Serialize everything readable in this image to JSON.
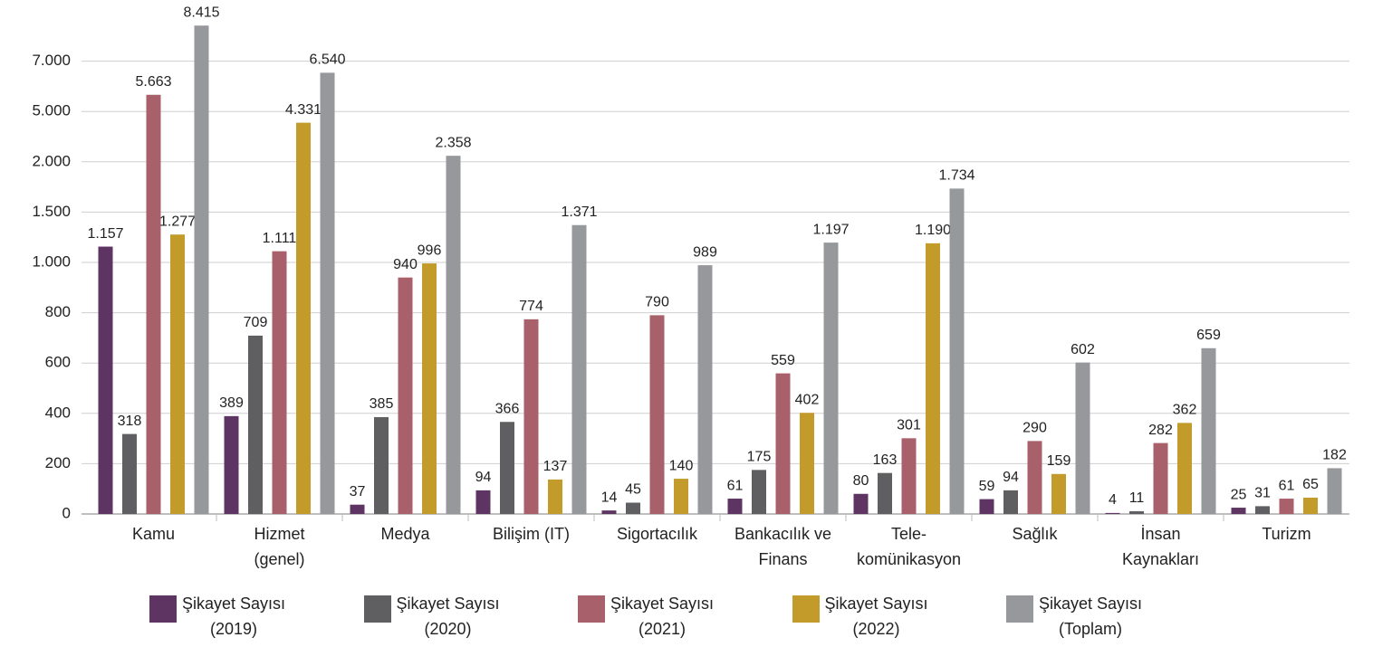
{
  "chart_data": {
    "type": "bar",
    "categories": [
      "Kamu",
      "Hizmet\n(genel)",
      "Medya",
      "Bilişim (IT)",
      "Sigortacılık",
      "Bankacılık ve\nFinans",
      "Tele-\nkomünikasyon",
      "Sağlık",
      "İnsan\nKaynakları",
      "Turizm"
    ],
    "series": [
      {
        "name": "Şikayet Sayısı\n(2019)",
        "color": "#5e3462",
        "values": [
          1157,
          389,
          37,
          94,
          14,
          61,
          80,
          59,
          4,
          25
        ],
        "value_labels": [
          "1.157",
          "389",
          "37",
          "94",
          "14",
          "61",
          "80",
          "59",
          "4",
          "25"
        ]
      },
      {
        "name": "Şikayet Sayısı\n(2020)",
        "color": "#5f5f61",
        "values": [
          318,
          709,
          385,
          366,
          45,
          175,
          163,
          94,
          11,
          31
        ],
        "value_labels": [
          "318",
          "709",
          "385",
          "366",
          "45",
          "175",
          "163",
          "94",
          "11",
          "31"
        ]
      },
      {
        "name": "Şikayet Sayısı\n(2021)",
        "color": "#a8606b",
        "values": [
          5663,
          1111,
          940,
          774,
          790,
          559,
          301,
          290,
          282,
          61
        ],
        "value_labels": [
          "5.663",
          "1.111",
          "940",
          "774",
          "790",
          "559",
          "301",
          "290",
          "282",
          "61"
        ]
      },
      {
        "name": "Şikayet Sayısı\n(2022)",
        "color": "#c39b2b",
        "values": [
          1277,
          4331,
          996,
          137,
          140,
          402,
          1190,
          159,
          362,
          65
        ],
        "value_labels": [
          "1.277",
          "4.331",
          "996",
          "137",
          "140",
          "402",
          "1.190",
          "159",
          "362",
          "65"
        ]
      },
      {
        "name": "Şikayet Sayısı\n(Toplam)",
        "color": "#96989b",
        "values": [
          8415,
          6540,
          2358,
          1371,
          989,
          1197,
          1734,
          602,
          659,
          182
        ],
        "value_labels": [
          "8.415",
          "6.540",
          "2.358",
          "1.371",
          "989",
          "1.197",
          "1.734",
          "602",
          "659",
          "182"
        ]
      }
    ],
    "ylim": [
      0,
      9000
    ],
    "yticks": [
      0,
      200,
      400,
      600,
      800,
      {
        "value": 1000,
        "label": "1.000"
      },
      {
        "value": 1500,
        "label": "1.500"
      },
      {
        "value": 2000,
        "label": "2.000"
      },
      {
        "value": 5000,
        "label": "5.000"
      },
      {
        "value": 7000,
        "label": "7.000"
      }
    ],
    "grid": true
  }
}
